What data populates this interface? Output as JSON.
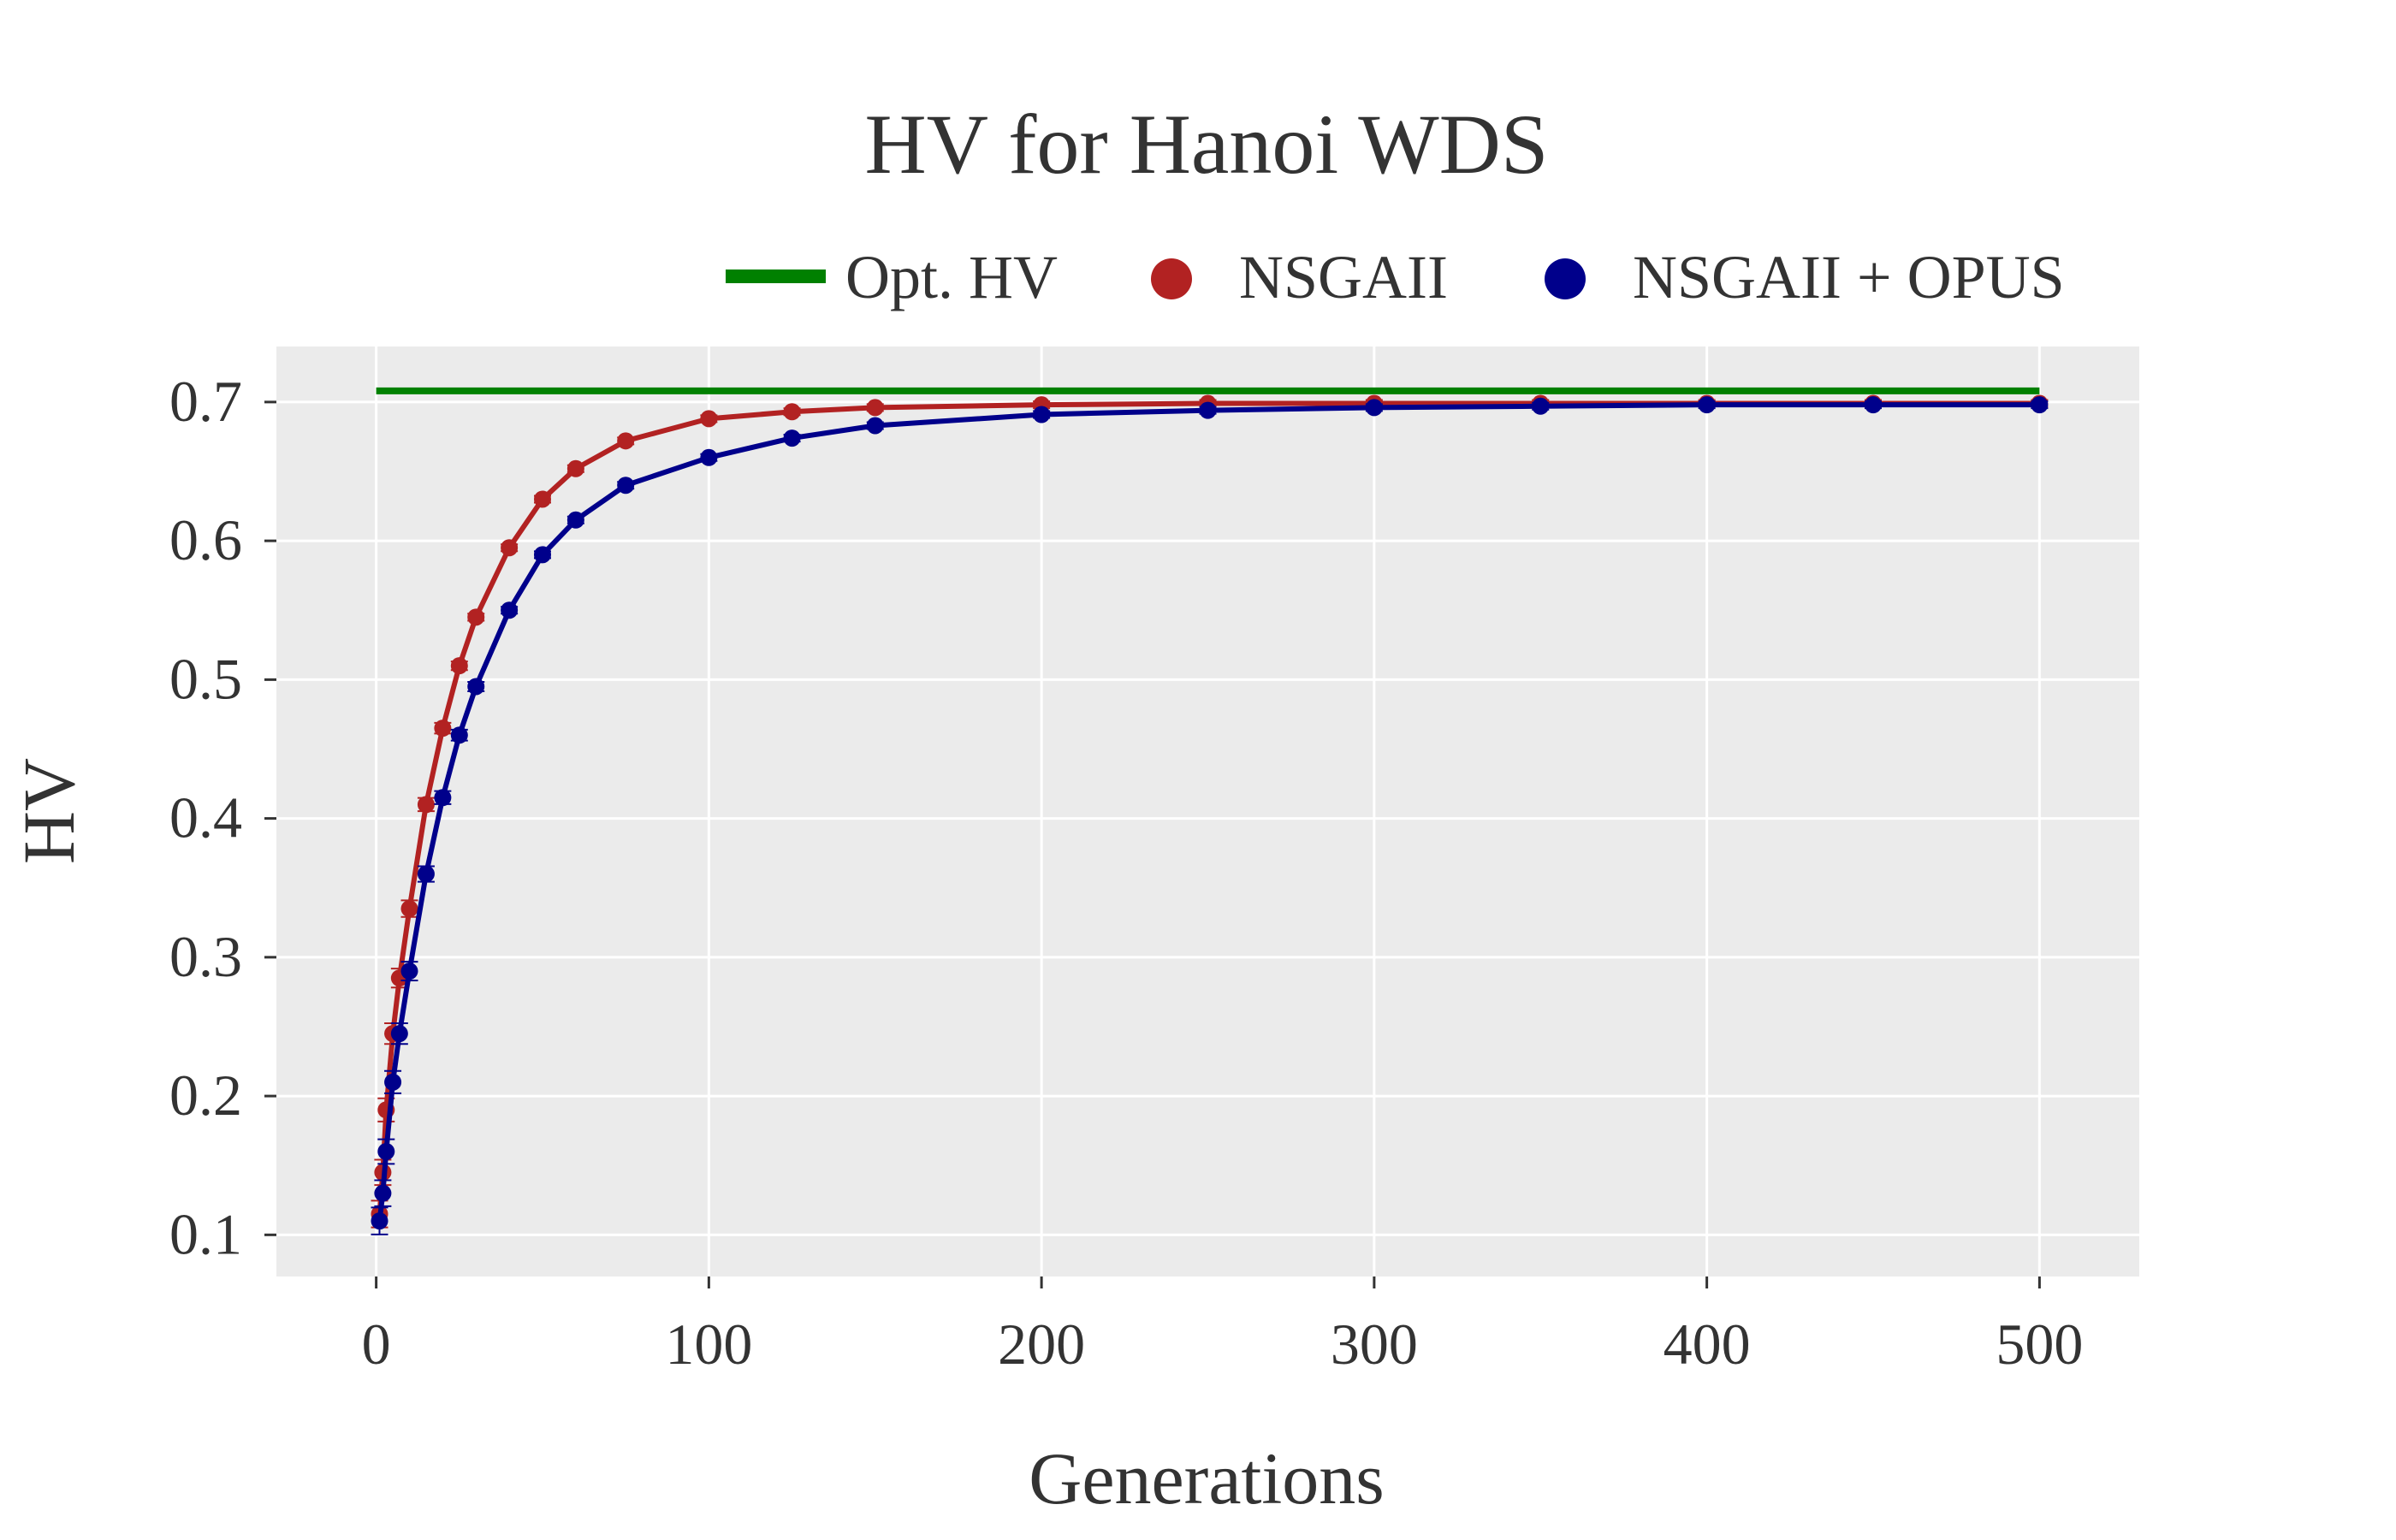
{
  "chart_data": {
    "type": "scatter",
    "title": "HV for Hanoi WDS",
    "xlabel": "Generations",
    "ylabel": "HV",
    "xlim": [
      -30,
      530
    ],
    "ylim": [
      0.07,
      0.74
    ],
    "x_ticks": [
      0,
      100,
      200,
      300,
      400,
      500
    ],
    "x_tick_labels": [
      "0",
      "100",
      "200",
      "300",
      "400",
      "500"
    ],
    "y_ticks": [
      0.1,
      0.2,
      0.3,
      0.4,
      0.5,
      0.6,
      0.7
    ],
    "y_tick_labels": [
      "0.1",
      "0.2",
      "0.3",
      "0.4",
      "0.5",
      "0.6",
      "0.7"
    ],
    "grid": true,
    "legend_position": "top-right",
    "reference_line": {
      "name": "Opt. HV",
      "y": 0.708,
      "x_range": [
        0,
        500
      ],
      "color": "#008000"
    },
    "x": [
      1,
      2,
      3,
      5,
      7,
      10,
      15,
      20,
      25,
      30,
      40,
      50,
      60,
      75,
      100,
      125,
      150,
      200,
      250,
      300,
      350,
      400,
      450,
      500
    ],
    "series": [
      {
        "name": "NSGAII",
        "color": "#b22222",
        "values": [
          0.115,
          0.145,
          0.19,
          0.245,
          0.285,
          0.335,
          0.41,
          0.465,
          0.51,
          0.545,
          0.595,
          0.63,
          0.652,
          0.672,
          0.688,
          0.693,
          0.696,
          0.698,
          0.699,
          0.699,
          0.699,
          0.699,
          0.699,
          0.699
        ]
      },
      {
        "name": "NSGAII + OPUS",
        "color": "#00008b",
        "values": [
          0.11,
          0.13,
          0.16,
          0.21,
          0.245,
          0.29,
          0.36,
          0.415,
          0.46,
          0.495,
          0.55,
          0.59,
          0.615,
          0.64,
          0.66,
          0.674,
          0.683,
          0.691,
          0.694,
          0.696,
          0.697,
          0.698,
          0.698,
          0.698
        ]
      }
    ]
  }
}
